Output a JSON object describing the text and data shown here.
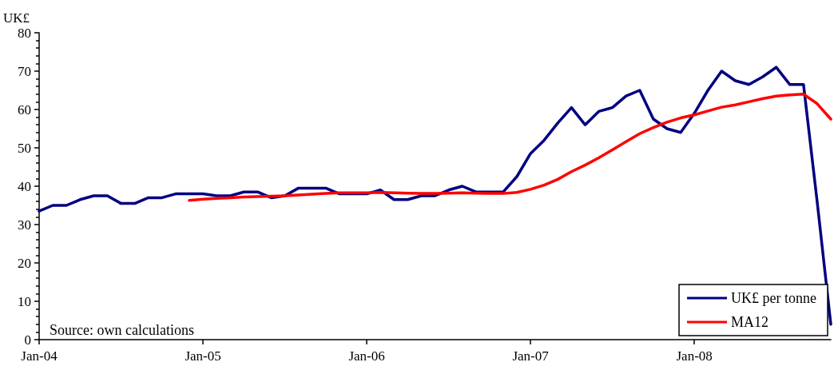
{
  "chart_data": {
    "type": "line",
    "ylabel": "UK£",
    "annotations": [
      "Source: own calculations"
    ],
    "categories": [
      "Jan-04",
      null,
      null,
      null,
      null,
      null,
      null,
      null,
      null,
      null,
      null,
      null,
      "Jan-05",
      null,
      null,
      null,
      null,
      null,
      null,
      null,
      null,
      null,
      null,
      null,
      "Jan-06",
      null,
      null,
      null,
      null,
      null,
      null,
      null,
      null,
      null,
      null,
      null,
      "Jan-07",
      null,
      null,
      null,
      null,
      null,
      null,
      null,
      null,
      null,
      null,
      null,
      "Jan-08",
      null,
      null,
      null,
      null,
      null,
      null,
      null,
      null,
      null,
      null
    ],
    "series": [
      {
        "name": "UK£ per tonne",
        "color": "#000080",
        "values": [
          33.5,
          35,
          35,
          36.5,
          37.5,
          37.5,
          35.5,
          35.5,
          37,
          37,
          38,
          38,
          38,
          37.5,
          37.5,
          38.5,
          38.5,
          37,
          37.5,
          39.5,
          39.5,
          39.5,
          38,
          38,
          38,
          39,
          36.5,
          36.5,
          37.5,
          37.5,
          39,
          40,
          38.5,
          38.5,
          38.5,
          42.5,
          48.5,
          52,
          56.5,
          60.5,
          56,
          59.5,
          60.5,
          63.5,
          65,
          57.5,
          55,
          54,
          59,
          65,
          70,
          67.5,
          66.5,
          68.5,
          71,
          66.5,
          66.5,
          36,
          4
        ]
      },
      {
        "name": "MA12",
        "color": "#ff0000",
        "values": [
          null,
          null,
          null,
          null,
          null,
          null,
          null,
          null,
          null,
          null,
          null,
          36.3,
          36.6,
          36.8,
          37,
          37.2,
          37.3,
          37.4,
          37.5,
          37.7,
          37.9,
          38.1,
          38.3,
          38.3,
          38.3,
          38.4,
          38.3,
          38.2,
          38.1,
          38.1,
          38.2,
          38.3,
          38.2,
          38.1,
          38.1,
          38.4,
          39.2,
          40.3,
          41.8,
          43.8,
          45.5,
          47.4,
          49.5,
          51.6,
          53.7,
          55.3,
          56.7,
          57.8,
          58.6,
          59.6,
          60.6,
          61.2,
          62,
          62.8,
          63.5,
          63.8,
          64,
          61.5,
          57.5
        ]
      }
    ],
    "ylim": [
      0,
      80
    ],
    "yticks": [
      0,
      10,
      20,
      30,
      40,
      50,
      60,
      70,
      80
    ],
    "grid": false,
    "legend": "bottom right",
    "marker": "none",
    "line_style": "solid"
  }
}
